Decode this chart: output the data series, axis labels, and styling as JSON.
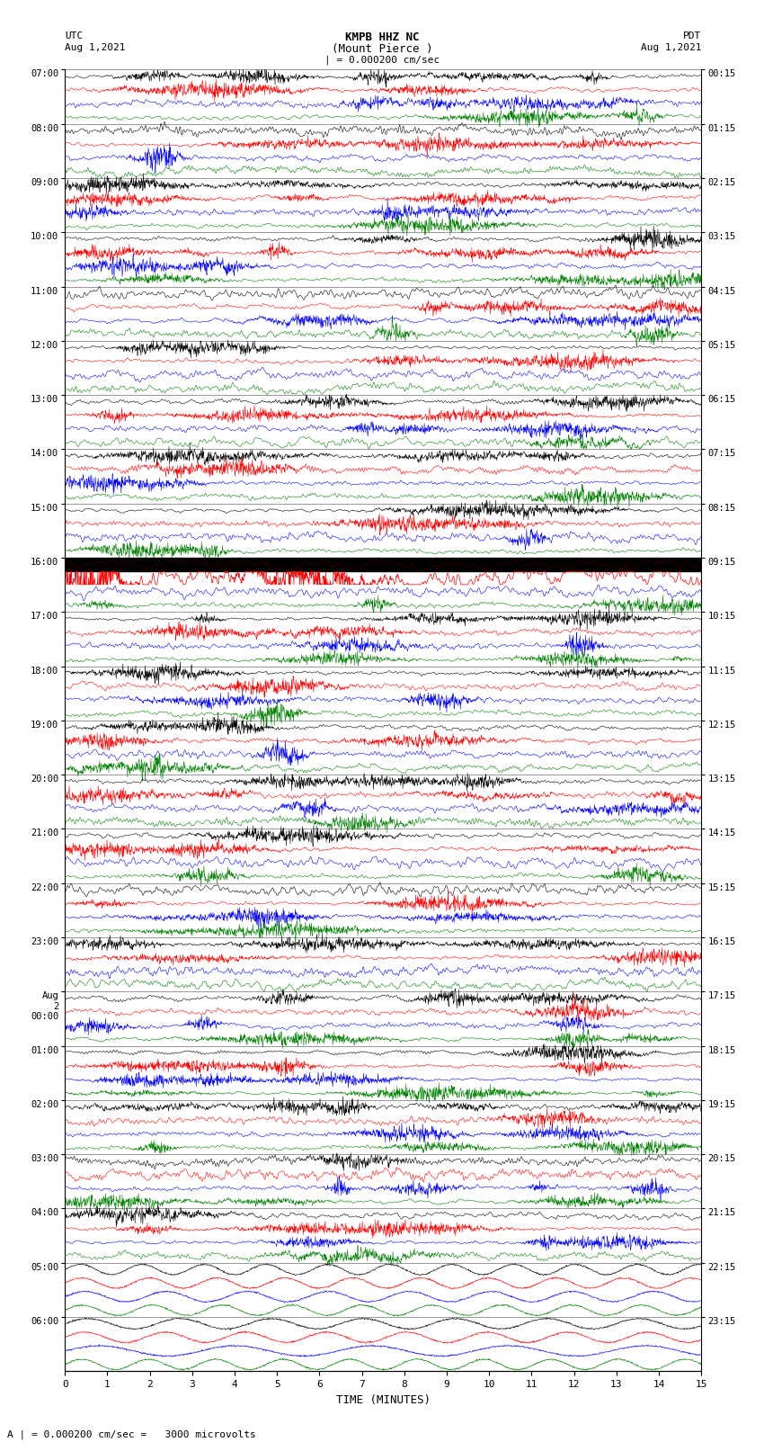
{
  "title_line1": "KMPB HHZ NC",
  "title_line2": "(Mount Pierce )",
  "title_line3": "| = 0.000200 cm/sec",
  "left_label_line1": "UTC",
  "left_label_line2": "Aug 1,2021",
  "right_label_line1": "PDT",
  "right_label_line2": "Aug 1,2021",
  "bottom_label": "TIME (MINUTES)",
  "scale_label": "A | = 0.000200 cm/sec =   3000 microvolts",
  "xlabel_ticks": [
    0,
    1,
    2,
    3,
    4,
    5,
    6,
    7,
    8,
    9,
    10,
    11,
    12,
    13,
    14,
    15
  ],
  "utc_labels": [
    "07:00",
    "08:00",
    "09:00",
    "10:00",
    "11:00",
    "12:00",
    "13:00",
    "14:00",
    "15:00",
    "16:00",
    "17:00",
    "18:00",
    "19:00",
    "20:00",
    "21:00",
    "22:00",
    "23:00",
    "Aug\n2\n00:00",
    "01:00",
    "02:00",
    "03:00",
    "04:00",
    "05:00",
    "06:00"
  ],
  "pdt_labels": [
    "00:15",
    "01:15",
    "02:15",
    "03:15",
    "04:15",
    "05:15",
    "06:15",
    "07:15",
    "08:15",
    "09:15",
    "10:15",
    "11:15",
    "12:15",
    "13:15",
    "14:15",
    "15:15",
    "16:15",
    "17:15",
    "18:15",
    "19:15",
    "20:15",
    "21:15",
    "22:15",
    "23:15"
  ],
  "n_hours": 24,
  "rows_per_hour": 4,
  "row_colors_pattern": [
    "black",
    "red",
    "blue",
    "green"
  ],
  "bg_color": "white",
  "trace_amplitude": 0.42,
  "special_hour_index": 9,
  "figure_width": 8.5,
  "figure_height": 16.13,
  "dpi": 100
}
